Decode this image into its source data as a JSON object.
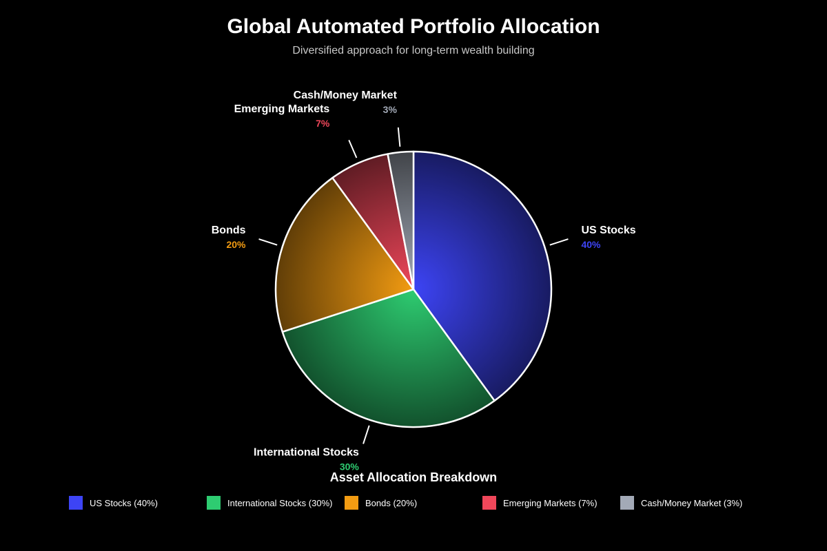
{
  "chart_data": {
    "type": "pie",
    "title": "Global Automated Portfolio Allocation",
    "subtitle": "Diversified approach for long-term wealth building",
    "legend_title": "Asset Allocation Breakdown",
    "legend_position": "bottom",
    "slices": [
      {
        "label": "US Stocks",
        "value": 40,
        "value_label": "40%",
        "legend": "US Stocks (40%)",
        "color": "#3d44f5"
      },
      {
        "label": "International Stocks",
        "value": 30,
        "value_label": "30%",
        "legend": "International Stocks (30%)",
        "color": "#2ecc71"
      },
      {
        "label": "Bonds",
        "value": 20,
        "value_label": "20%",
        "legend": "Bonds (20%)",
        "color": "#f39c12"
      },
      {
        "label": "Emerging Markets",
        "value": 7,
        "value_label": "7%",
        "legend": "Emerging Markets (7%)",
        "color": "#f0475a"
      },
      {
        "label": "Cash/Money Market",
        "value": 3,
        "value_label": "3%",
        "legend": "Cash/Money Market (3%)",
        "color": "#a3aab7"
      }
    ]
  }
}
